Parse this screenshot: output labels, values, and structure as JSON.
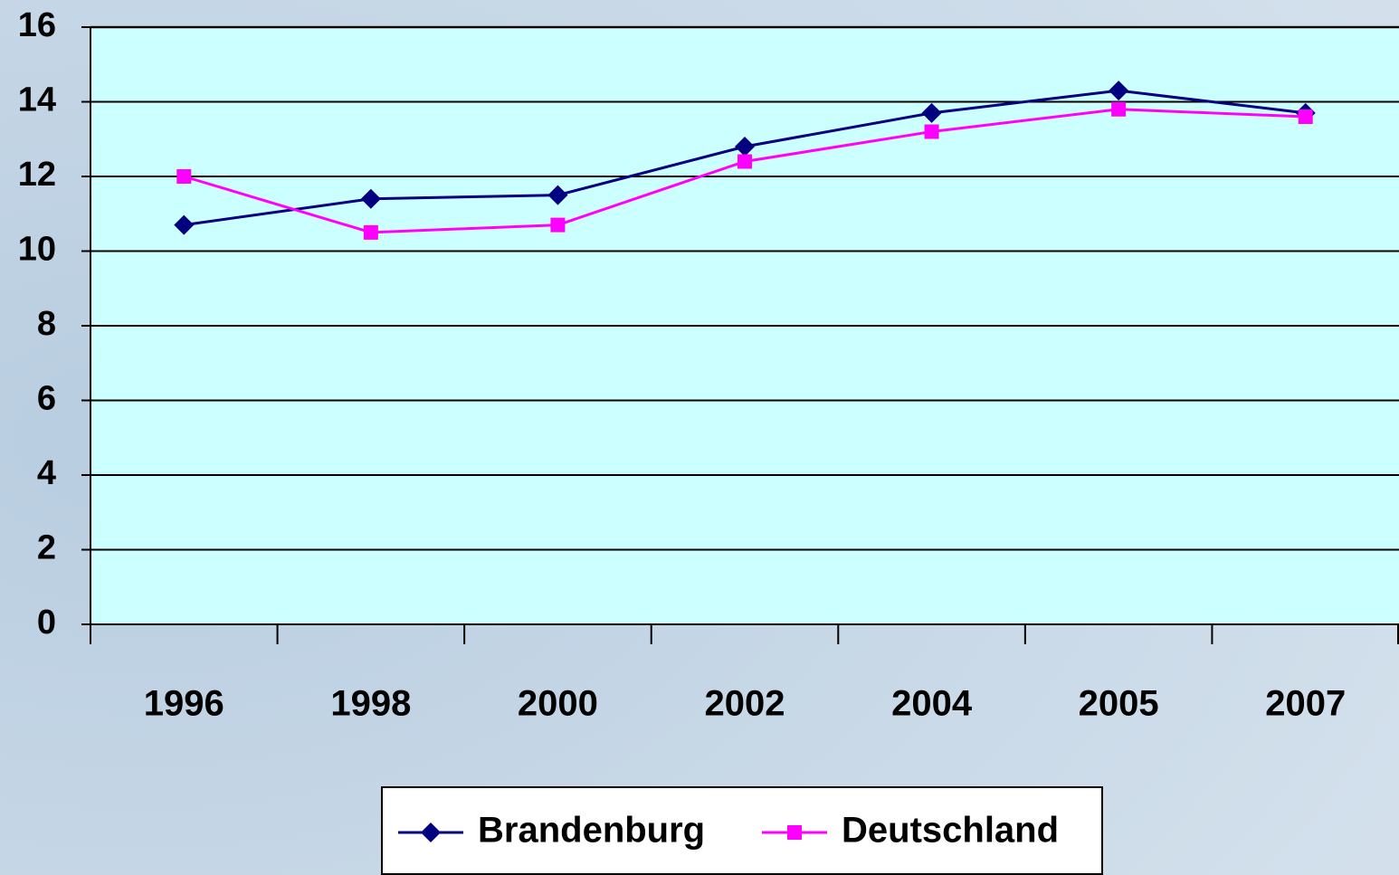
{
  "chart_data": {
    "type": "line",
    "categories": [
      "1996",
      "1998",
      "2000",
      "2002",
      "2004",
      "2005",
      "2007"
    ],
    "series": [
      {
        "name": "Brandenburg",
        "color": "#000080",
        "marker": "diamond",
        "values": [
          10.7,
          11.4,
          11.5,
          12.8,
          13.7,
          14.3,
          13.7
        ]
      },
      {
        "name": "Deutschland",
        "color": "#ff00ff",
        "marker": "square",
        "values": [
          12.0,
          10.5,
          10.7,
          12.4,
          13.2,
          13.8,
          13.6
        ]
      }
    ],
    "ylim": [
      0,
      16
    ],
    "yticks": [
      0,
      2,
      4,
      6,
      8,
      10,
      12,
      14,
      16
    ],
    "grid": true,
    "legend": "bottom"
  }
}
